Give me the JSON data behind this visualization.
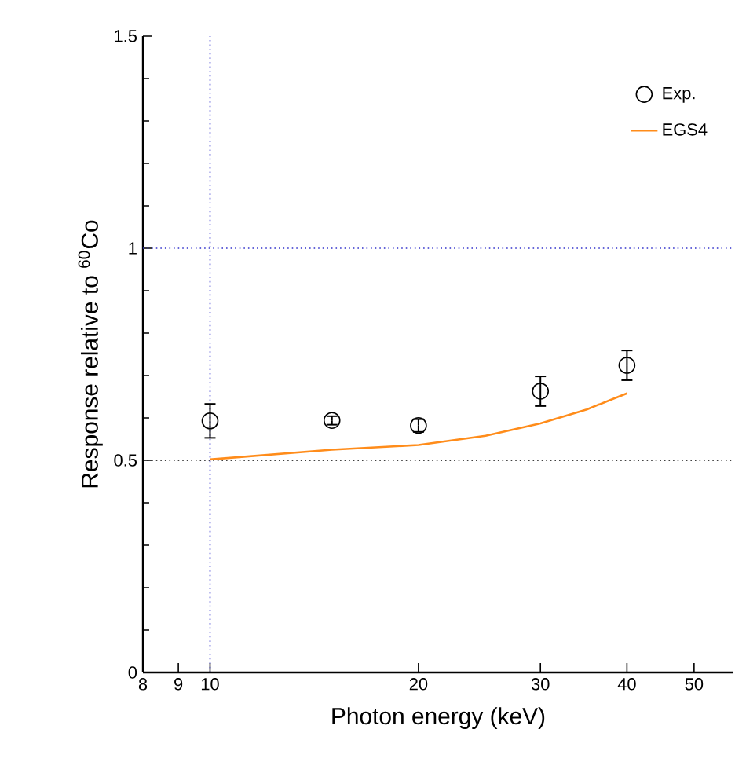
{
  "chart_data": {
    "type": "scatter",
    "xlabel": "Photon energy (keV)",
    "ylabel": "Response relative to $^{60}$Co",
    "log": "x",
    "xlim": [
      8,
      57
    ],
    "ylim": [
      0,
      1.5
    ],
    "xticks": [
      8,
      9,
      10,
      20,
      30,
      40,
      50
    ],
    "yticks": [
      0,
      0.5,
      1,
      1.5
    ],
    "grid": false,
    "legend": "top right",
    "series": [
      {
        "name": "Exp.",
        "marker": "circle",
        "color": "#000000",
        "x": [
          10,
          15,
          20,
          30,
          40
        ],
        "values": [
          0.593,
          0.594,
          0.582,
          0.663,
          0.724
        ],
        "errors": [
          0.04,
          0.01,
          0.015,
          0.035,
          0.035
        ]
      },
      {
        "name": "EGS4",
        "type": "line",
        "marker": "none",
        "color": "#ff8c1a",
        "x": [
          10,
          15,
          20,
          25,
          30,
          35,
          40
        ],
        "values": [
          0.502,
          0.525,
          0.536,
          0.558,
          0.587,
          0.62,
          0.658
        ]
      }
    ],
    "ref_lines": [
      {
        "axis": "y",
        "value": 0.5,
        "color": "#000000",
        "line_style": "dotted"
      },
      {
        "axis": "y",
        "value": 1,
        "color": "#3333cc",
        "line_style": "dotted"
      },
      {
        "axis": "x",
        "value": 10,
        "color": "#3333cc",
        "line_style": "dotted"
      }
    ]
  }
}
